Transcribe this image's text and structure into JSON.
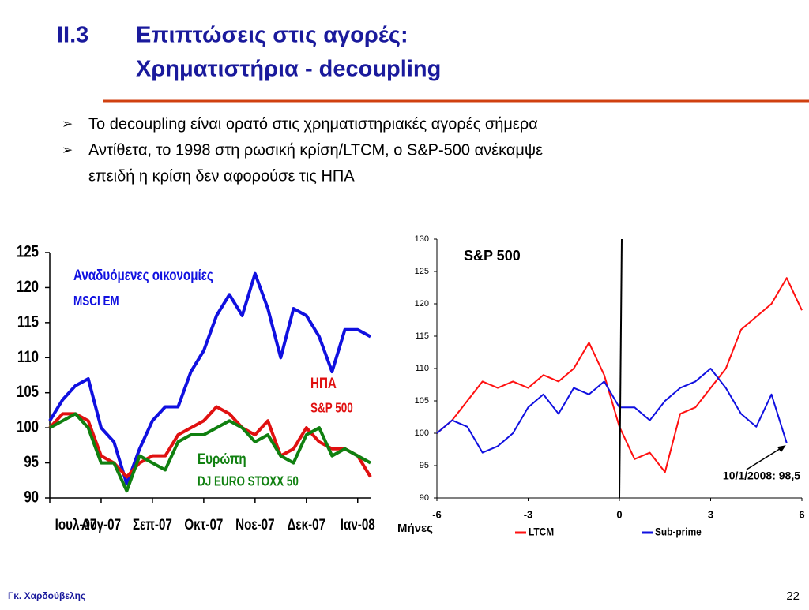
{
  "header": {
    "number": "ΙΙ.3",
    "title_line1": "Επιπτώσεις στις αγορές:",
    "title_line2": "Χρηματιστήρια - decoupling"
  },
  "bullets": [
    "Το decoupling είναι ορατό στις χρηματιστηριακές αγορές σήμερα",
    "Αντίθετα, το 1998 στη ρωσική κρίση/LTCM, ο S&P-500 ανέκαμψε",
    "επειδή η κρίση δεν αφορούσε τις ΗΠΑ"
  ],
  "chart_data": [
    {
      "type": "line",
      "categories": [
        "Ιουλ-07",
        null,
        null,
        null,
        "Αυγ-07",
        null,
        null,
        null,
        "Σεπ-07",
        null,
        null,
        null,
        "Οκτ-07",
        null,
        null,
        null,
        "Νοε-07",
        null,
        null,
        null,
        "Δεκ-07",
        null,
        null,
        null,
        "Ιαν-08",
        null
      ],
      "ylim": [
        90,
        125
      ],
      "yticks": [
        90,
        95,
        100,
        105,
        110,
        115,
        120,
        125
      ],
      "series": [
        {
          "name": "Αναδυόμενες οικονομίες",
          "sublabel": "MSCI EM",
          "color": "#1010e0",
          "values": [
            101,
            104,
            106,
            107,
            100,
            98,
            92,
            97,
            101,
            103,
            103,
            108,
            111,
            116,
            119,
            116,
            122,
            117,
            110,
            117,
            116,
            113,
            108,
            114,
            114,
            113
          ]
        },
        {
          "name": "ΗΠΑ",
          "sublabel": "S&P 500",
          "color": "#e01010",
          "values": [
            100,
            102,
            102,
            101,
            96,
            95,
            93,
            95,
            96,
            96,
            99,
            100,
            101,
            103,
            102,
            100,
            99,
            101,
            96,
            97,
            100,
            98,
            97,
            97,
            96,
            93
          ]
        },
        {
          "name": "Ευρώπη",
          "sublabel": "DJ EURO STOXX 50",
          "color": "#108010",
          "values": [
            100,
            101,
            102,
            100,
            95,
            95,
            91,
            96,
            95,
            94,
            98,
            99,
            99,
            100,
            101,
            100,
            98,
            99,
            96,
            95,
            99,
            100,
            96,
            97,
            96,
            95
          ]
        }
      ]
    },
    {
      "type": "line",
      "title": "S&P 500",
      "xlabel": "Μήνες",
      "xlim": [
        -6,
        6
      ],
      "xticks": [
        -6,
        -3,
        0,
        3,
        6
      ],
      "ylim": [
        90,
        130
      ],
      "yticks": [
        90,
        95,
        100,
        105,
        110,
        115,
        120,
        125,
        130
      ],
      "vline_x": 0,
      "legend": "bottom",
      "annotation": "10/1/2008: 98,5",
      "series": [
        {
          "name": "LTCM",
          "color": "#ff1010",
          "x": [
            -6,
            -5.5,
            -5,
            -4.5,
            -4,
            -3.5,
            -3,
            -2.5,
            -2,
            -1.5,
            -1,
            -0.5,
            0,
            0.5,
            1,
            1.5,
            2,
            2.5,
            3,
            3.5,
            4,
            4.5,
            5,
            5.5,
            6
          ],
          "values": [
            100,
            102,
            105,
            108,
            107,
            108,
            107,
            109,
            108,
            110,
            114,
            109,
            101,
            96,
            97,
            94,
            103,
            104,
            107,
            110,
            116,
            118,
            120,
            124,
            119
          ]
        },
        {
          "name": "Sub-prime",
          "color": "#1010e0",
          "x": [
            -6,
            -5.5,
            -5,
            -4.5,
            -4,
            -3.5,
            -3,
            -2.5,
            -2,
            -1.5,
            -1,
            -0.5,
            0,
            0.5,
            1,
            1.5,
            2,
            2.5,
            3,
            3.5,
            4,
            4.5,
            5,
            5.5
          ],
          "values": [
            100,
            102,
            101,
            97,
            98,
            100,
            104,
            106,
            103,
            107,
            106,
            108,
            104,
            104,
            102,
            105,
            107,
            108,
            110,
            107,
            103,
            101,
            106,
            98.5
          ]
        }
      ]
    }
  ],
  "footer": {
    "author": "Γκ. Χαρδούβελης",
    "page": "22"
  }
}
